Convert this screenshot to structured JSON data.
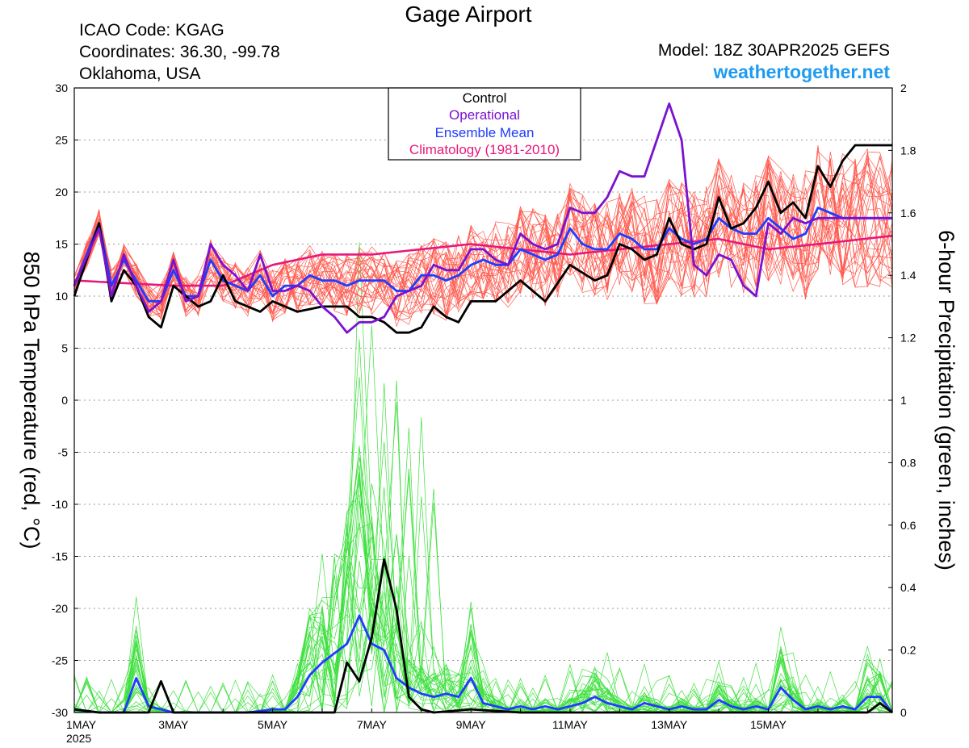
{
  "header": {
    "title": "Gage Airport",
    "icao": "ICAO Code: KGAG",
    "coords": "Coordinates: 36.30, -99.78",
    "location": "Oklahoma, USA",
    "model": "Model: 18Z 30APR2025 GEFS",
    "site": "weathertogether.net"
  },
  "colors": {
    "members_temp": "#ff5a4e",
    "members_precip": "#3ee03e",
    "control": "#000000",
    "operational": "#7a12d0",
    "ensemble_mean": "#1f3cff",
    "climatology": "#e8187a",
    "site": "#1e9bf0",
    "grid": "#9a9a9a"
  },
  "chart_data": {
    "type": "line",
    "title": "Gage Airport",
    "ylabel": "850 hPa Temperature (red, °C)",
    "y2label": "6-hour Precipitation (green, inches)",
    "ylim": [
      -30,
      30
    ],
    "y2lim": [
      0,
      2
    ],
    "yticks": [
      "30",
      "25",
      "20",
      "15",
      "10",
      "5",
      "0",
      "-5",
      "-10",
      "-15",
      "-20",
      "-25",
      "-30"
    ],
    "y2ticks": [
      "2",
      "1.8",
      "1.6",
      "1.4",
      "1.2",
      "1",
      "0.8",
      "0.6",
      "0.4",
      "0.2",
      "0"
    ],
    "xlim": [
      0,
      16.5
    ],
    "xticks": [
      {
        "x": 0,
        "label": "1MAY",
        "sub": "2025"
      },
      {
        "x": 2,
        "label": "3MAY",
        "sub": ""
      },
      {
        "x": 4,
        "label": "5MAY",
        "sub": ""
      },
      {
        "x": 6,
        "label": "7MAY",
        "sub": ""
      },
      {
        "x": 8,
        "label": "9MAY",
        "sub": ""
      },
      {
        "x": 10,
        "label": "11MAY",
        "sub": ""
      },
      {
        "x": 12,
        "label": "13MAY",
        "sub": ""
      },
      {
        "x": 14,
        "label": "15MAY",
        "sub": ""
      }
    ],
    "x_unit": "days from 1MAY 00Z (6-hourly steps)",
    "grid": "dotted horizontal",
    "legend": {
      "position": "top-center",
      "entries": [
        {
          "label": "Control",
          "color": "#000000"
        },
        {
          "label": "Operational",
          "color": "#7a12d0"
        },
        {
          "label": "Ensemble Mean",
          "color": "#1f3cff"
        },
        {
          "label": "Climatology (1981-2010)",
          "color": "#e8187a"
        }
      ]
    },
    "series": [
      {
        "key": "control_temp",
        "axis": "temp",
        "x": [
          0,
          0.5,
          0.75,
          1.0,
          1.25,
          1.5,
          1.75,
          2.0,
          2.25,
          2.5,
          2.75,
          3.0,
          3.25,
          3.5,
          3.75,
          4.0,
          4.5,
          5.0,
          5.5,
          5.75,
          6.0,
          6.25,
          6.5,
          6.75,
          7.0,
          7.25,
          7.5,
          7.75,
          8.0,
          8.5,
          9.0,
          9.5,
          10.0,
          10.5,
          10.75,
          11.0,
          11.25,
          11.5,
          11.75,
          12.0,
          12.25,
          12.5,
          12.75,
          13.0,
          13.25,
          13.5,
          13.75,
          14.0,
          14.25,
          14.5,
          14.75,
          15.0,
          15.25,
          15.5,
          15.75,
          16.0,
          16.25,
          16.5
        ],
        "values": [
          10,
          17,
          9.5,
          12.5,
          11,
          8,
          7,
          11,
          10,
          9,
          9.5,
          12,
          9.5,
          9,
          8.5,
          9.5,
          8.5,
          9,
          9,
          8,
          8,
          7.5,
          6.5,
          6.5,
          7,
          9,
          8,
          7.5,
          9.5,
          9.5,
          11.5,
          9.5,
          13,
          11.5,
          12,
          15,
          14.5,
          13.5,
          14,
          17.5,
          15,
          14.5,
          15,
          19.5,
          16.5,
          17,
          18.5,
          21,
          18,
          19,
          17.5,
          22.5,
          20.5,
          23,
          24.5,
          24.5,
          24.5,
          24.5
        ]
      },
      {
        "key": "operational_temp",
        "axis": "temp",
        "x": [
          0,
          0.5,
          0.75,
          1.0,
          1.25,
          1.5,
          1.75,
          2.0,
          2.25,
          2.5,
          2.75,
          3.0,
          3.25,
          3.5,
          3.75,
          4.0,
          4.25,
          4.5,
          4.75,
          5.0,
          5.25,
          5.5,
          5.75,
          6.0,
          6.25,
          6.5,
          6.75,
          7.0,
          7.25,
          7.5,
          7.75,
          8.0,
          8.25,
          8.5,
          8.75,
          9.0,
          9.25,
          9.5,
          9.75,
          10.0,
          10.25,
          10.5,
          10.75,
          11.0,
          11.25,
          11.5,
          11.75,
          12.0,
          12.25,
          12.5,
          12.75,
          13.0,
          13.25,
          13.5,
          13.75,
          14.0,
          14.25,
          14.5,
          14.75,
          15.0,
          15.25,
          15.5,
          15.75,
          16.0,
          16.25,
          16.5
        ],
        "values": [
          11,
          16.5,
          10,
          14,
          11,
          8.5,
          9.5,
          13.5,
          9.5,
          10,
          15,
          13,
          12,
          10.5,
          14,
          10.5,
          10.5,
          11,
          10.5,
          9,
          8,
          6.5,
          7.5,
          7.5,
          8,
          10,
          10.5,
          11,
          13,
          12.5,
          12.5,
          14.5,
          14.5,
          13.5,
          13,
          16,
          15,
          14.5,
          15,
          18.5,
          18,
          18,
          19.5,
          22,
          21.5,
          21.5,
          25,
          28.5,
          25,
          13,
          12,
          14,
          13.5,
          11,
          10,
          17,
          16,
          17.5,
          17,
          17.5,
          17.5,
          17.5,
          17.5,
          17.5,
          17.5,
          17.5
        ]
      },
      {
        "key": "mean_temp",
        "axis": "temp",
        "x": [
          0,
          0.5,
          0.75,
          1.0,
          1.25,
          1.5,
          1.75,
          2.0,
          2.25,
          2.5,
          2.75,
          3.0,
          3.25,
          3.5,
          3.75,
          4.0,
          4.25,
          4.5,
          4.75,
          5.0,
          5.25,
          5.5,
          5.75,
          6.0,
          6.25,
          6.5,
          6.75,
          7.0,
          7.25,
          7.5,
          7.75,
          8.0,
          8.25,
          8.5,
          8.75,
          9.0,
          9.25,
          9.5,
          9.75,
          10.0,
          10.25,
          10.5,
          10.75,
          11.0,
          11.25,
          11.5,
          11.75,
          12.0,
          12.25,
          12.5,
          12.75,
          13.0,
          13.25,
          13.5,
          13.75,
          14.0,
          14.25,
          14.5,
          14.75,
          15.0,
          15.25,
          15.5,
          15.75,
          16.0,
          16.25,
          16.5
        ],
        "values": [
          11,
          17,
          11,
          13.5,
          11.5,
          9.5,
          9.5,
          12.5,
          10,
          10,
          13.5,
          11.5,
          11,
          10.5,
          12,
          10,
          11,
          11,
          12,
          11.5,
          11.5,
          11,
          11.5,
          11.5,
          11.5,
          10.5,
          10.5,
          12,
          12,
          11.5,
          12,
          13,
          13.5,
          13,
          13,
          14.5,
          14,
          13.5,
          14,
          16.5,
          15,
          14.5,
          14.5,
          16,
          15.5,
          14.5,
          14.5,
          16.5,
          15.5,
          15,
          15.5,
          17.5,
          16.5,
          16,
          16,
          17.5,
          16.5,
          15.5,
          16,
          18.5,
          18,
          17.5,
          17.5,
          17.5,
          17.5,
          17.5
        ]
      },
      {
        "key": "climatology_temp",
        "axis": "temp",
        "x": [
          0,
          2,
          3,
          4,
          5,
          6,
          7,
          8,
          9,
          10,
          11,
          12,
          13,
          14,
          15,
          16.5
        ],
        "values": [
          11.5,
          11,
          11,
          13,
          14,
          14,
          14.5,
          15,
          14.5,
          14,
          14.5,
          15,
          15.5,
          14.5,
          15,
          15.8
        ]
      },
      {
        "key": "control_precip",
        "axis": "precip",
        "x": [
          0,
          0.5,
          1.5,
          1.75,
          2.0,
          2.25,
          5.0,
          5.25,
          5.5,
          5.75,
          6.0,
          6.25,
          6.5,
          6.75,
          7.0,
          7.25,
          8.0,
          9.0,
          10.0,
          11.0,
          12.0,
          14.0,
          16.0,
          16.25,
          16.5
        ],
        "values": [
          0.01,
          0,
          0,
          0.1,
          0,
          0,
          0,
          0,
          0.16,
          0.1,
          0.24,
          0.49,
          0.33,
          0.05,
          0.01,
          0,
          0.01,
          0,
          0,
          0,
          0,
          0,
          0,
          0.03,
          0
        ]
      },
      {
        "key": "mean_precip",
        "axis": "precip",
        "x": [
          0,
          0.5,
          1.0,
          1.25,
          1.5,
          1.75,
          2.0,
          2.25,
          2.5,
          3.0,
          3.5,
          4.0,
          4.25,
          4.5,
          4.75,
          5.0,
          5.25,
          5.5,
          5.75,
          6.0,
          6.25,
          6.5,
          6.75,
          7.0,
          7.25,
          7.5,
          7.75,
          8.0,
          8.25,
          8.5,
          8.75,
          9.0,
          9.25,
          9.5,
          9.75,
          10.0,
          10.25,
          10.5,
          10.75,
          11.0,
          11.25,
          11.5,
          11.75,
          12.0,
          12.25,
          12.5,
          12.75,
          13.0,
          13.25,
          13.5,
          13.75,
          14.0,
          14.25,
          14.5,
          14.75,
          15.0,
          15.25,
          15.5,
          15.75,
          16.0,
          16.25,
          16.5
        ],
        "values": [
          0.01,
          0,
          0,
          0.11,
          0.02,
          0.01,
          0,
          0,
          0,
          0,
          0,
          0.01,
          0.01,
          0.05,
          0.12,
          0.16,
          0.19,
          0.22,
          0.31,
          0.22,
          0.2,
          0.11,
          0.08,
          0.06,
          0.05,
          0.06,
          0.05,
          0.11,
          0.03,
          0.02,
          0.01,
          0.02,
          0.01,
          0.02,
          0.01,
          0.02,
          0.03,
          0.05,
          0.03,
          0.02,
          0.01,
          0.03,
          0.02,
          0.01,
          0.02,
          0.01,
          0.01,
          0.04,
          0.02,
          0.01,
          0.02,
          0.01,
          0.08,
          0.04,
          0.01,
          0.02,
          0.01,
          0.02,
          0.01,
          0.05,
          0.05,
          0
        ]
      }
    ]
  }
}
